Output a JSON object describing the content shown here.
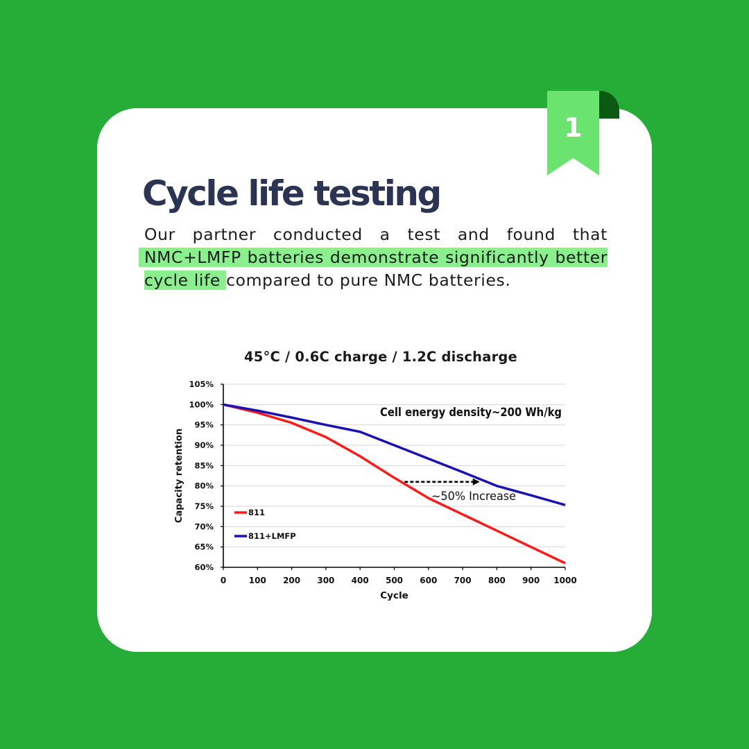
{
  "badge": {
    "number": "1"
  },
  "heading": {
    "title": "Cycle life testing"
  },
  "paragraph": {
    "before": "Our partner conducted a test and found that ",
    "highlight": "NMC+LMFP batteries demonstrate significantly better cycle life",
    "after": " compared to pure NMC batteries."
  },
  "colors": {
    "background": "#26ad38",
    "card": "#ffffff",
    "badge": "#6be46f",
    "highlight": "#8af08d",
    "title_text": "#2b3452",
    "series_811": "#ff1a1a",
    "series_811_lmfp": "#1a12b0"
  },
  "chart_data": {
    "type": "line",
    "title": "45°C / 0.6C charge / 1.2C discharge",
    "xlabel": "Cycle",
    "ylabel": "Capacity retention",
    "xlim": [
      0,
      1000
    ],
    "ylim": [
      60,
      105
    ],
    "x_ticks": [
      "0",
      "100",
      "200",
      "300",
      "400",
      "500",
      "600",
      "700",
      "800",
      "900",
      "1000"
    ],
    "y_ticks": [
      "60%",
      "65%",
      "70%",
      "75%",
      "80%",
      "85%",
      "90%",
      "95%",
      "100%",
      "105%"
    ],
    "grid": "horizontal",
    "legend_position": "lower-left",
    "series": [
      {
        "name": "811",
        "color": "#ff1a1a",
        "points": [
          [
            0,
            100
          ],
          [
            100,
            98
          ],
          [
            200,
            95.5
          ],
          [
            300,
            92
          ],
          [
            400,
            87.3
          ],
          [
            500,
            82
          ],
          [
            600,
            77
          ],
          [
            700,
            73
          ],
          [
            800,
            69
          ],
          [
            900,
            65
          ],
          [
            1000,
            61
          ]
        ]
      },
      {
        "name": "811+LMFP",
        "color": "#1a12b0",
        "points": [
          [
            0,
            100
          ],
          [
            100,
            98.5
          ],
          [
            200,
            96.8
          ],
          [
            300,
            95
          ],
          [
            400,
            93.3
          ],
          [
            500,
            90
          ],
          [
            600,
            86.7
          ],
          [
            700,
            83.4
          ],
          [
            800,
            80
          ],
          [
            900,
            77.7
          ],
          [
            1000,
            75.3
          ]
        ]
      }
    ],
    "annotations": {
      "density": "Cell energy density~200 Wh/kg",
      "increase": "~50% Increase",
      "arrow": {
        "from": [
          530,
          81
        ],
        "to": [
          750,
          81
        ]
      }
    }
  }
}
